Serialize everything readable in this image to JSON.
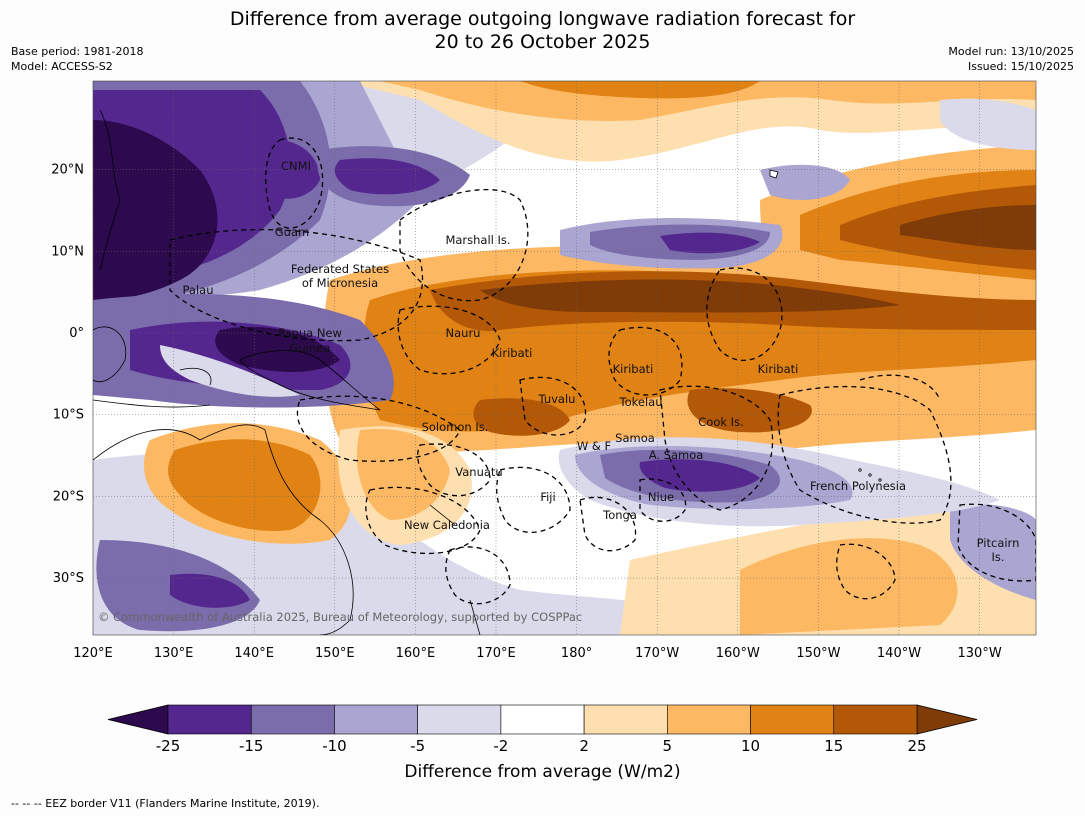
{
  "header": {
    "title_line1": "Difference from average outgoing longwave radiation forecast for",
    "title_line2": "20 to 26 October 2025",
    "base_period": "Base period: 1981-2018",
    "model": "Model: ACCESS-S2",
    "model_run": "Model run: 13/10/2025",
    "issued": "Issued: 15/10/2025"
  },
  "map": {
    "lon_ticks": [
      "120°E",
      "130°E",
      "140°E",
      "150°E",
      "160°E",
      "170°E",
      "180°",
      "170°W",
      "160°W",
      "150°W",
      "140°W",
      "130°W"
    ],
    "lat_ticks": [
      "20°N",
      "10°N",
      "0°",
      "10°S",
      "20°S",
      "30°S"
    ],
    "copyright": "© Commonwealth of Australia 2025, Bureau of Meteorology, supported by COSPPac",
    "places": [
      "CNMI",
      "Guam",
      "Marshall Is.",
      "Federated States",
      "of Micronesia",
      "Palau",
      "Papua New",
      "Guinea",
      "Nauru",
      "Kiribati",
      "Kiribati",
      "Kiribati",
      "Tuvalu",
      "Tokelau",
      "Solomon Is.",
      "Cook Is.",
      "W & F",
      "Samoa",
      "A. Samoa",
      "Vanuatu",
      "Fiji",
      "Niue",
      "Tonga",
      "New Caledonia",
      "French Polynesia",
      "Pitcairn",
      "Is."
    ]
  },
  "colorbar": {
    "ticks": [
      "-25",
      "-15",
      "-10",
      "-5",
      "-2",
      "2",
      "5",
      "10",
      "15",
      "25"
    ],
    "colors": [
      "#2d0a4e",
      "#54278f",
      "#7b6dab",
      "#aba6d1",
      "#dadaeb",
      "#ffffff",
      "#fddfb0",
      "#fdb863",
      "#e08214",
      "#b35806",
      "#7f3b08"
    ],
    "label": "Difference from average (W/m2)"
  },
  "footnote": "--  --  -- EEZ border V11 (Flanders Marine Institute, 2019)."
}
